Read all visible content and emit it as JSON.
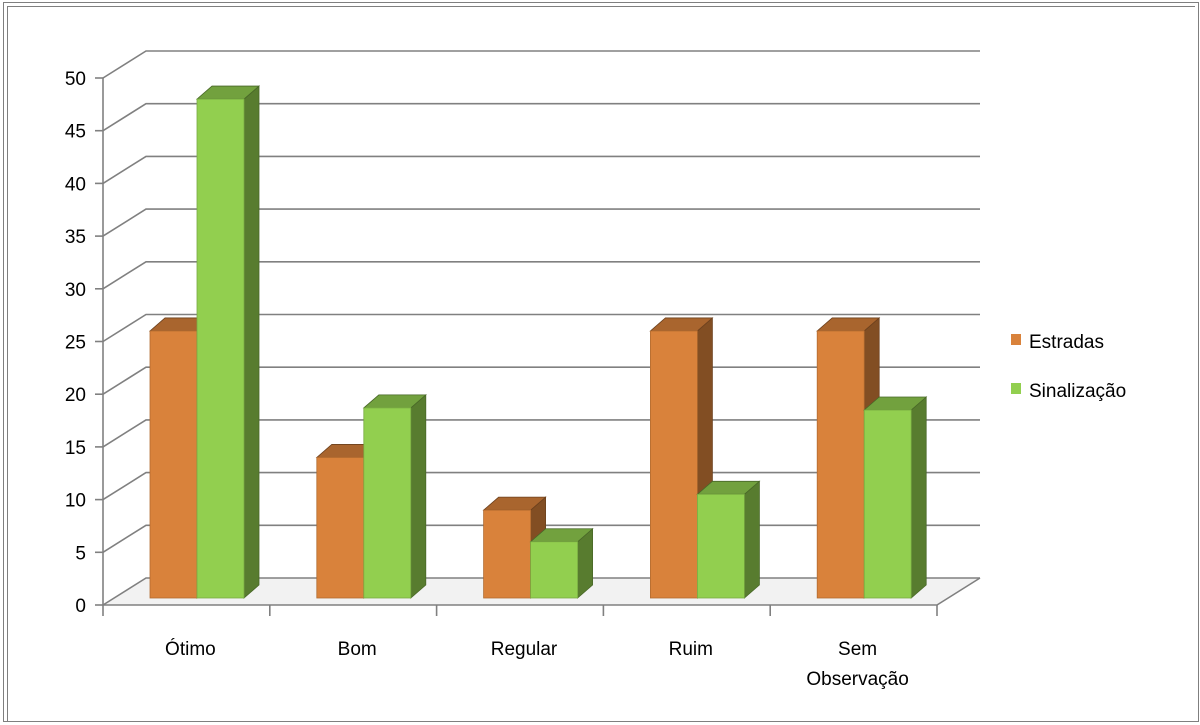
{
  "chart_data": {
    "type": "bar",
    "title": "",
    "xlabel": "",
    "ylabel": "",
    "categories": [
      "Ótimo",
      "Bom",
      "Regular",
      "Ruim",
      "Sem Observação"
    ],
    "category_lines": [
      [
        "Ótimo"
      ],
      [
        "Bom"
      ],
      [
        "Regular"
      ],
      [
        "Ruim"
      ],
      [
        "Sem",
        "Observação"
      ]
    ],
    "series": [
      {
        "name": "Estradas",
        "values": [
          26,
          14,
          9,
          26,
          26
        ],
        "color": "#d9823b"
      },
      {
        "name": "Sinalização",
        "values": [
          48,
          18.7,
          6,
          10.5,
          18.5
        ],
        "color": "#92cf4f"
      }
    ],
    "ylim": [
      0,
      50
    ],
    "yticks": [
      0,
      5,
      10,
      15,
      20,
      25,
      30,
      35,
      40,
      45,
      50
    ],
    "grid": true,
    "legend_position": "right",
    "style": "3d-clustered-column"
  }
}
